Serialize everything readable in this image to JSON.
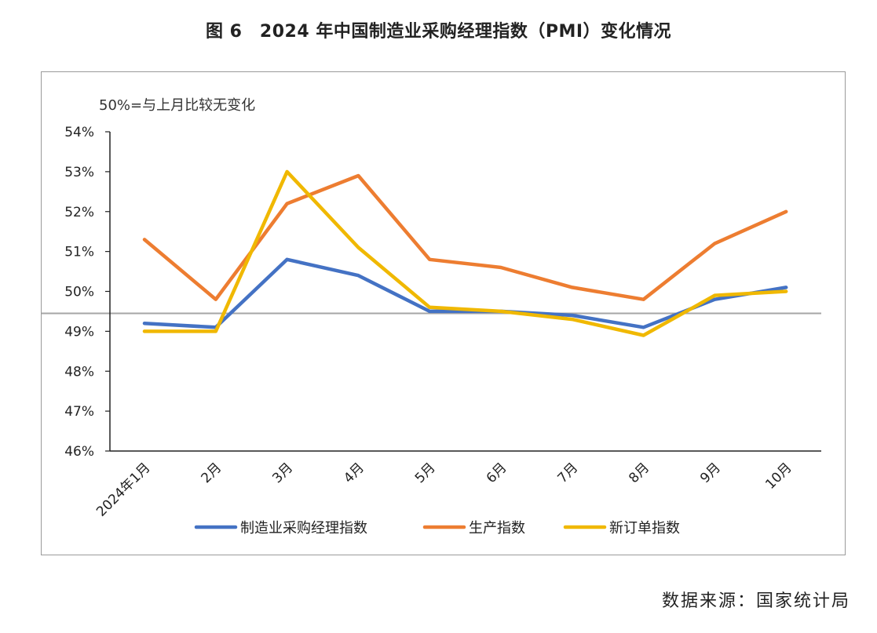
{
  "title": "图 6　2024 年中国制造业采购经理指数（PMI）变化情况",
  "note": "50%=与上月比较无变化",
  "source": "数据来源：国家统计局",
  "chart_data": {
    "type": "line",
    "categories": [
      "2024年1月",
      "2月",
      "3月",
      "4月",
      "5月",
      "6月",
      "7月",
      "8月",
      "9月",
      "10月"
    ],
    "series": [
      {
        "name": "制造业采购经理指数",
        "color": "#4472C4",
        "values": [
          49.2,
          49.1,
          50.8,
          50.4,
          49.5,
          49.5,
          49.4,
          49.1,
          49.8,
          50.1
        ]
      },
      {
        "name": "生产指数",
        "color": "#ED7D31",
        "values": [
          51.3,
          49.8,
          52.2,
          52.9,
          50.8,
          50.6,
          50.1,
          49.8,
          51.2,
          52.0
        ]
      },
      {
        "name": "新订单指数",
        "color": "#F0B800",
        "values": [
          49.0,
          49.0,
          53.0,
          51.1,
          49.6,
          49.5,
          49.3,
          48.9,
          49.9,
          50.0
        ]
      }
    ],
    "yticks": [
      "46%",
      "47%",
      "48%",
      "49%",
      "50%",
      "51%",
      "52%",
      "53%",
      "54%"
    ],
    "ylim": [
      46,
      54
    ],
    "reference_line": 49.45,
    "reference_color": "#a6a6a6",
    "legend_position": "bottom"
  }
}
